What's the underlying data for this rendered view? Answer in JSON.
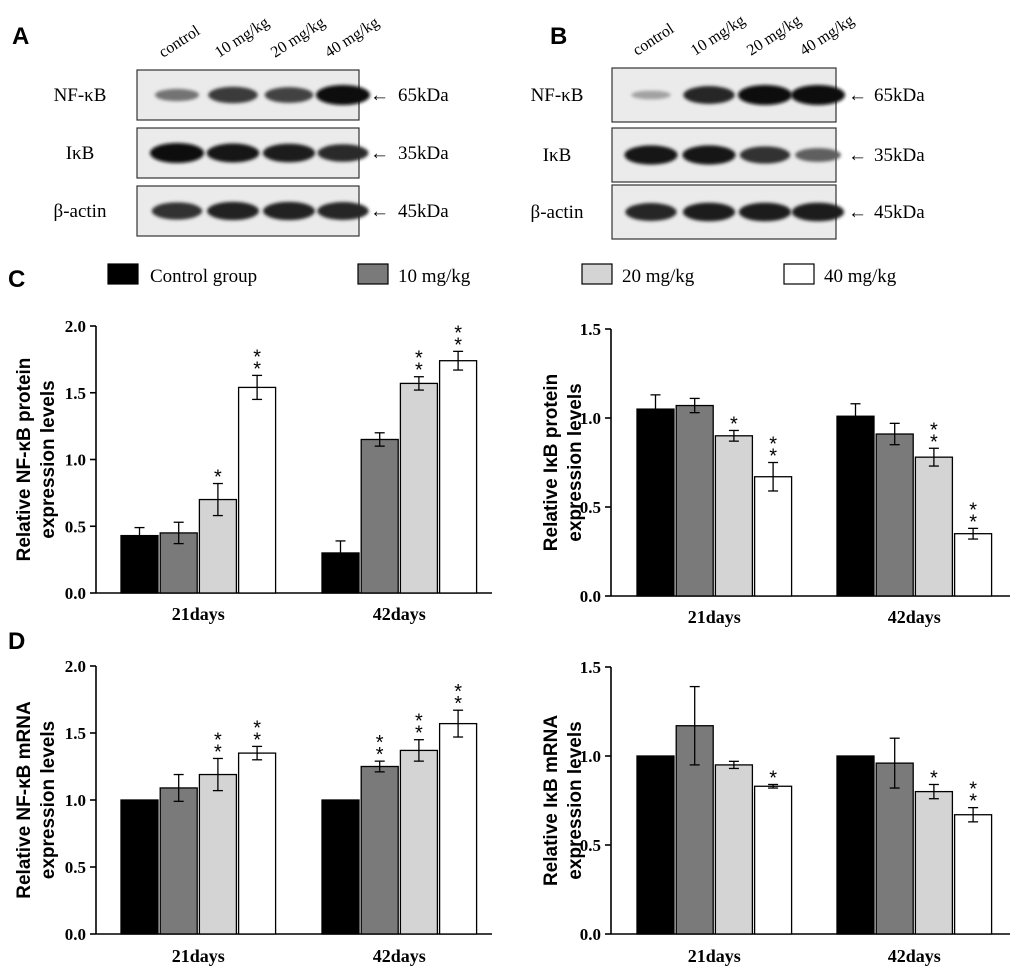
{
  "panels": {
    "A": "A",
    "B": "B",
    "C": "C",
    "D": "D"
  },
  "blots": [
    {
      "id": "A",
      "lanes": [
        "control",
        "10 mg/kg",
        "20 mg/kg",
        "40 mg/kg"
      ],
      "rows": [
        {
          "label": "NF-κB",
          "size": "65kDa",
          "intensity": [
            0.45,
            0.75,
            0.7,
            1.0
          ]
        },
        {
          "label": "IκB",
          "size": "35kDa",
          "intensity": [
            1.0,
            0.92,
            0.9,
            0.82
          ]
        },
        {
          "label": "β-actin",
          "size": "45kDa",
          "intensity": [
            0.8,
            0.88,
            0.88,
            0.85
          ]
        }
      ]
    },
    {
      "id": "B",
      "lanes": [
        "control",
        "10 mg/kg",
        "20 mg/kg",
        "40 mg/kg"
      ],
      "rows": [
        {
          "label": "NF-κB",
          "size": "65kDa",
          "intensity": [
            0.2,
            0.85,
            1.0,
            1.0
          ]
        },
        {
          "label": "IκB",
          "size": "35kDa",
          "intensity": [
            0.95,
            0.95,
            0.8,
            0.55
          ]
        },
        {
          "label": "β-actin",
          "size": "45kDa",
          "intensity": [
            0.85,
            0.9,
            0.9,
            0.9
          ]
        }
      ]
    }
  ],
  "arrow": "←",
  "legend": [
    {
      "name": "Control group",
      "color": "#000000"
    },
    {
      "name": "10 mg/kg",
      "color": "#7a7a7a"
    },
    {
      "name": "20 mg/kg",
      "color": "#d4d4d4"
    },
    {
      "name": "40 mg/kg",
      "color": "#ffffff"
    }
  ],
  "chart_data": [
    {
      "type": "bar",
      "panel": "C",
      "ylabel": [
        "Relative NF-κB protein",
        "expression levels"
      ],
      "categories": [
        "21days",
        "42days"
      ],
      "ylim": [
        0,
        2.0
      ],
      "yticks": [
        "0.0",
        "0.5",
        "1.0",
        "1.5",
        "2.0"
      ],
      "series": [
        {
          "name": "Control group",
          "values": [
            0.43,
            0.3
          ],
          "errors": [
            0.06,
            0.09
          ],
          "sig": [
            "",
            ""
          ]
        },
        {
          "name": "10 mg/kg",
          "values": [
            0.45,
            1.15
          ],
          "errors": [
            0.08,
            0.05
          ],
          "sig": [
            "",
            ""
          ]
        },
        {
          "name": "20 mg/kg",
          "values": [
            0.7,
            1.57
          ],
          "errors": [
            0.12,
            0.05
          ],
          "sig": [
            "*",
            "**"
          ]
        },
        {
          "name": "40 mg/kg",
          "values": [
            1.54,
            1.74
          ],
          "errors": [
            0.09,
            0.07
          ],
          "sig": [
            "**",
            "**"
          ]
        }
      ]
    },
    {
      "type": "bar",
      "panel": "C",
      "ylabel": [
        "Relative IκB protein",
        "expression levels"
      ],
      "categories": [
        "21days",
        "42days"
      ],
      "ylim": [
        0,
        1.5
      ],
      "yticks": [
        "0.0",
        "0.5",
        "1.0",
        "1.5"
      ],
      "series": [
        {
          "name": "Control group",
          "values": [
            1.05,
            1.01
          ],
          "errors": [
            0.08,
            0.07
          ],
          "sig": [
            "",
            ""
          ]
        },
        {
          "name": "10 mg/kg",
          "values": [
            1.07,
            0.91
          ],
          "errors": [
            0.04,
            0.06
          ],
          "sig": [
            "",
            ""
          ]
        },
        {
          "name": "20 mg/kg",
          "values": [
            0.9,
            0.78
          ],
          "errors": [
            0.03,
            0.05
          ],
          "sig": [
            "*",
            "**"
          ]
        },
        {
          "name": "40 mg/kg",
          "values": [
            0.67,
            0.35
          ],
          "errors": [
            0.08,
            0.03
          ],
          "sig": [
            "**",
            "**"
          ]
        }
      ]
    },
    {
      "type": "bar",
      "panel": "D",
      "ylabel": [
        "Relative NF-κB mRNA",
        "expression levels"
      ],
      "categories": [
        "21days",
        "42days"
      ],
      "ylim": [
        0,
        2.0
      ],
      "yticks": [
        "0.0",
        "0.5",
        "1.0",
        "1.5",
        "2.0"
      ],
      "series": [
        {
          "name": "Control group",
          "values": [
            1.0,
            1.0
          ],
          "errors": [
            0,
            0
          ],
          "sig": [
            "",
            ""
          ]
        },
        {
          "name": "10 mg/kg",
          "values": [
            1.09,
            1.25
          ],
          "errors": [
            0.1,
            0.04
          ],
          "sig": [
            "",
            "**"
          ]
        },
        {
          "name": "20 mg/kg",
          "values": [
            1.19,
            1.37
          ],
          "errors": [
            0.12,
            0.08
          ],
          "sig": [
            "**",
            "**"
          ]
        },
        {
          "name": "40 mg/kg",
          "values": [
            1.35,
            1.57
          ],
          "errors": [
            0.05,
            0.1
          ],
          "sig": [
            "**",
            "**"
          ]
        }
      ]
    },
    {
      "type": "bar",
      "panel": "D",
      "ylabel": [
        "Relative IκB mRNA",
        "expression levels"
      ],
      "categories": [
        "21days",
        "42days"
      ],
      "ylim": [
        0,
        1.5
      ],
      "yticks": [
        "0.0",
        "0.5",
        "1.0",
        "1.5"
      ],
      "series": [
        {
          "name": "Control group",
          "values": [
            1.0,
            1.0
          ],
          "errors": [
            0,
            0
          ],
          "sig": [
            "",
            ""
          ]
        },
        {
          "name": "10 mg/kg",
          "values": [
            1.17,
            0.96
          ],
          "errors": [
            0.22,
            0.14
          ],
          "sig": [
            "",
            ""
          ]
        },
        {
          "name": "20 mg/kg",
          "values": [
            0.95,
            0.8
          ],
          "errors": [
            0.02,
            0.04
          ],
          "sig": [
            "",
            "*"
          ]
        },
        {
          "name": "40 mg/kg",
          "values": [
            0.83,
            0.67
          ],
          "errors": [
            0.01,
            0.04
          ],
          "sig": [
            "*",
            "**"
          ]
        }
      ]
    }
  ]
}
